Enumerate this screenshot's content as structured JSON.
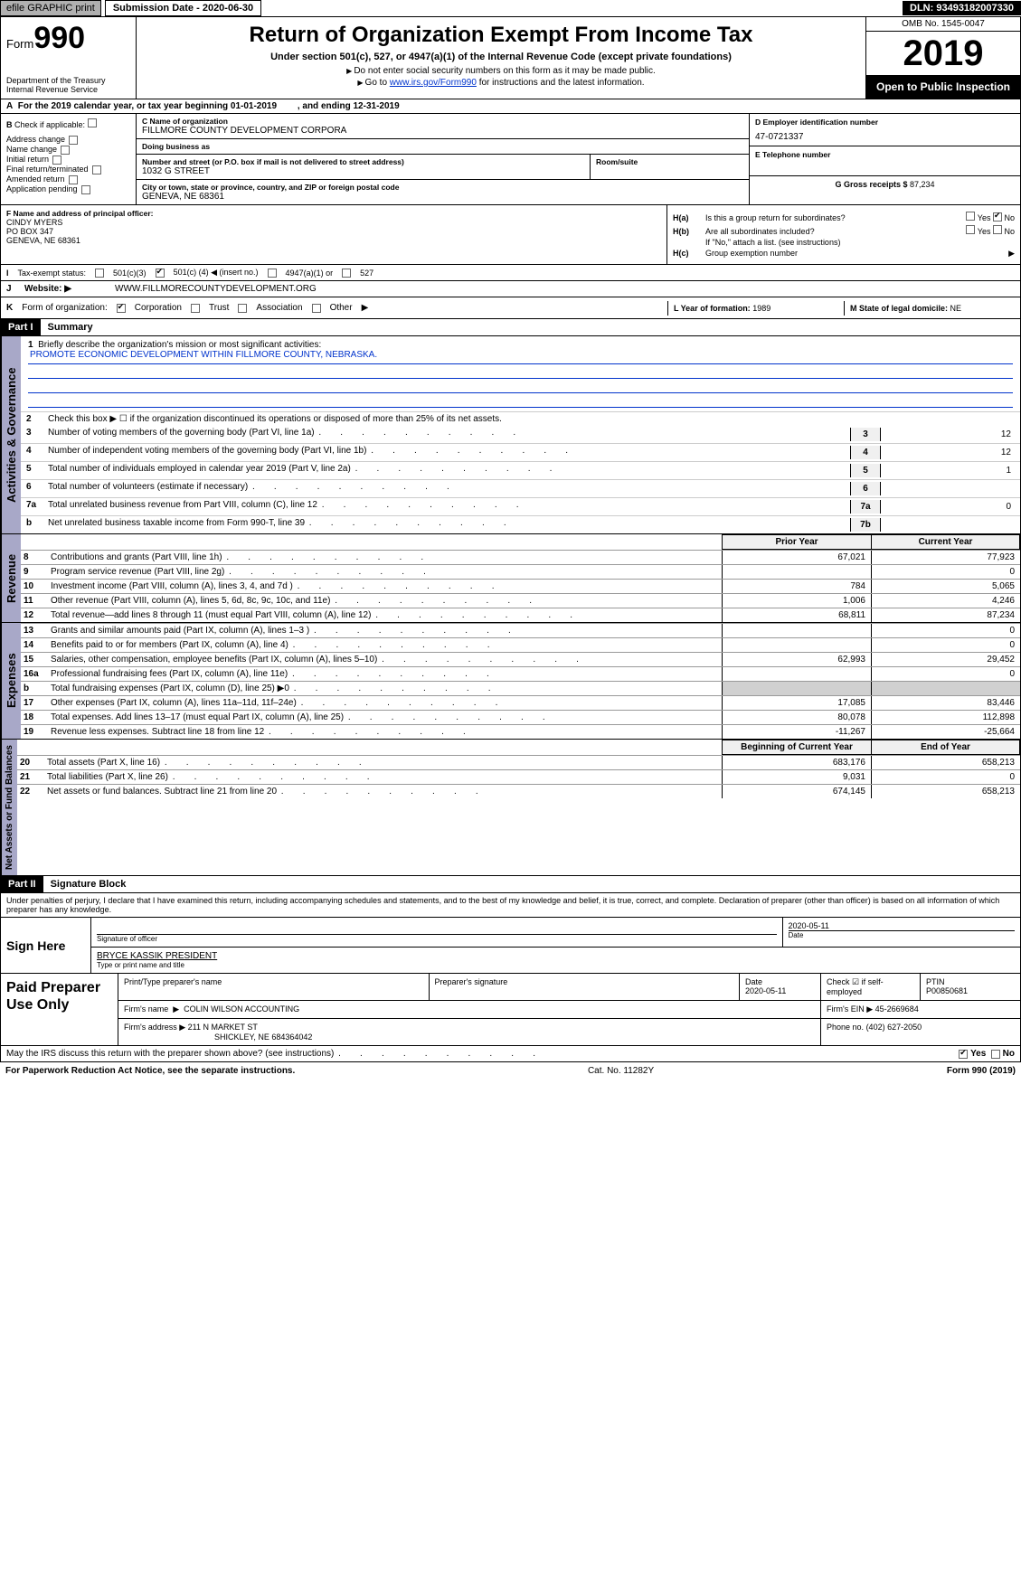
{
  "meta": {
    "efile_label": "efile GRAPHIC print",
    "submission_date_label": "Submission Date - 2020-06-30",
    "dln_label": "DLN: 93493182007330",
    "omb": "OMB No. 1545-0047",
    "form_prefix": "Form",
    "form_num": "990",
    "dept1": "Department of the Treasury",
    "dept2": "Internal Revenue Service",
    "title": "Return of Organization Exempt From Income Tax",
    "subtitle": "Under section 501(c), 527, or 4947(a)(1) of the Internal Revenue Code (except private foundations)",
    "note1": "Do not enter social security numbers on this form as it may be made public.",
    "note2_pre": "Go to ",
    "note2_link": "www.irs.gov/Form990",
    "note2_post": " for instructions and the latest information.",
    "year": "2019",
    "open_public": "Open to Public Inspection"
  },
  "rowA": {
    "lead": "A",
    "text": "For the 2019 calendar year, or tax year beginning 01-01-2019",
    "mid": ", and ending 12-31-2019"
  },
  "colB": {
    "lead": "B",
    "check_label": "Check if applicable:",
    "items": [
      "Address change",
      "Name change",
      "Initial return",
      "Final return/terminated",
      "Amended return",
      "Application pending"
    ]
  },
  "colC": {
    "name_label": "C Name of organization",
    "name": "FILLMORE COUNTY DEVELOPMENT CORPORA",
    "dba_label": "Doing business as",
    "dba": "",
    "street_label": "Number and street (or P.O. box if mail is not delivered to street address)",
    "street": "1032 G STREET",
    "room_label": "Room/suite",
    "room": "",
    "city_label": "City or town, state or province, country, and ZIP or foreign postal code",
    "city": "GENEVA, NE  68361"
  },
  "colDE": {
    "d_label": "D Employer identification number",
    "d_val": "47-0721337",
    "e_label": "E Telephone number",
    "e_val": "",
    "g_label": "G Gross receipts $",
    "g_val": "87,234"
  },
  "rowF": {
    "label": "F  Name and address of principal officer:",
    "name": "CINDY MYERS",
    "addr1": "PO BOX 347",
    "addr2": "GENEVA, NE   68361"
  },
  "rowH": {
    "ha_key": "H(a)",
    "ha_text": "Is this a group return for subordinates?",
    "ha_yes": "Yes",
    "ha_no": "No",
    "hb_key": "H(b)",
    "hb_text": "Are all subordinates included?",
    "hb_note": "If \"No,\" attach a list. (see instructions)",
    "hc_key": "H(c)",
    "hc_text": "Group exemption number"
  },
  "rowI": {
    "lead": "I",
    "label": "Tax-exempt status:",
    "opt1": "501(c)(3)",
    "opt2_pre": "501(c) (",
    "opt2_num": "4",
    "opt2_post": ")",
    "opt2_note": "(insert no.)",
    "opt3": "4947(a)(1) or",
    "opt4": "527"
  },
  "rowJ": {
    "lead": "J",
    "label": "Website:",
    "val": "WWW.FILLMORECOUNTYDEVELOPMENT.ORG"
  },
  "rowK": {
    "lead": "K",
    "label": "Form of organization:",
    "opts": [
      "Corporation",
      "Trust",
      "Association",
      "Other"
    ]
  },
  "rowLM": {
    "l_label": "L Year of formation:",
    "l_val": "1989",
    "m_label": "M State of legal domicile:",
    "m_val": "NE"
  },
  "part1": {
    "hdr": "Part I",
    "title": "Summary",
    "side1": "Activities & Governance",
    "side2": "Revenue",
    "side3": "Expenses",
    "side4": "Net Assets or Fund Balances",
    "line1_label": "Briefly describe the organization's mission or most significant activities:",
    "mission": "PROMOTE ECONOMIC DEVELOPMENT WITHIN FILLMORE COUNTY, NEBRASKA.",
    "line2_label": "Check this box ▶ ☐ if the organization discontinued its operations or disposed of more than 25% of its net assets.",
    "lines_gov": [
      {
        "n": "3",
        "t": "Number of voting members of the governing body (Part VI, line 1a)",
        "box": "3",
        "v": "12"
      },
      {
        "n": "4",
        "t": "Number of independent voting members of the governing body (Part VI, line 1b)",
        "box": "4",
        "v": "12"
      },
      {
        "n": "5",
        "t": "Total number of individuals employed in calendar year 2019 (Part V, line 2a)",
        "box": "5",
        "v": "1"
      },
      {
        "n": "6",
        "t": "Total number of volunteers (estimate if necessary)",
        "box": "6",
        "v": ""
      },
      {
        "n": "7a",
        "t": "Total unrelated business revenue from Part VIII, column (C), line 12",
        "box": "7a",
        "v": "0"
      },
      {
        "n": "b",
        "t": "Net unrelated business taxable income from Form 990-T, line 39",
        "box": "7b",
        "v": ""
      }
    ],
    "col_prior": "Prior Year",
    "col_current": "Current Year",
    "col_begin": "Beginning of Current Year",
    "col_end": "End of Year",
    "lines_rev": [
      {
        "n": "8",
        "t": "Contributions and grants (Part VIII, line 1h)",
        "py": "67,021",
        "cy": "77,923"
      },
      {
        "n": "9",
        "t": "Program service revenue (Part VIII, line 2g)",
        "py": "",
        "cy": "0"
      },
      {
        "n": "10",
        "t": "Investment income (Part VIII, column (A), lines 3, 4, and 7d )",
        "py": "784",
        "cy": "5,065"
      },
      {
        "n": "11",
        "t": "Other revenue (Part VIII, column (A), lines 5, 6d, 8c, 9c, 10c, and 11e)",
        "py": "1,006",
        "cy": "4,246"
      },
      {
        "n": "12",
        "t": "Total revenue—add lines 8 through 11 (must equal Part VIII, column (A), line 12)",
        "py": "68,811",
        "cy": "87,234"
      }
    ],
    "lines_exp": [
      {
        "n": "13",
        "t": "Grants and similar amounts paid (Part IX, column (A), lines 1–3 )",
        "py": "",
        "cy": "0"
      },
      {
        "n": "14",
        "t": "Benefits paid to or for members (Part IX, column (A), line 4)",
        "py": "",
        "cy": "0"
      },
      {
        "n": "15",
        "t": "Salaries, other compensation, employee benefits (Part IX, column (A), lines 5–10)",
        "py": "62,993",
        "cy": "29,452"
      },
      {
        "n": "16a",
        "t": "Professional fundraising fees (Part IX, column (A), line 11e)",
        "py": "",
        "cy": "0"
      },
      {
        "n": "b",
        "t": "Total fundraising expenses (Part IX, column (D), line 25) ▶0",
        "py": "SHADE",
        "cy": "SHADE"
      },
      {
        "n": "17",
        "t": "Other expenses (Part IX, column (A), lines 11a–11d, 11f–24e)",
        "py": "17,085",
        "cy": "83,446"
      },
      {
        "n": "18",
        "t": "Total expenses. Add lines 13–17 (must equal Part IX, column (A), line 25)",
        "py": "80,078",
        "cy": "112,898"
      },
      {
        "n": "19",
        "t": "Revenue less expenses. Subtract line 18 from line 12",
        "py": "-11,267",
        "cy": "-25,664"
      }
    ],
    "lines_net": [
      {
        "n": "20",
        "t": "Total assets (Part X, line 16)",
        "py": "683,176",
        "cy": "658,213"
      },
      {
        "n": "21",
        "t": "Total liabilities (Part X, line 26)",
        "py": "9,031",
        "cy": "0"
      },
      {
        "n": "22",
        "t": "Net assets or fund balances. Subtract line 21 from line 20",
        "py": "674,145",
        "cy": "658,213"
      }
    ]
  },
  "part2": {
    "hdr": "Part II",
    "title": "Signature Block",
    "decl": "Under penalties of perjury, I declare that I have examined this return, including accompanying schedules and statements, and to the best of my knowledge and belief, it is true, correct, and complete. Declaration of preparer (other than officer) is based on all information of which preparer has any knowledge.",
    "sign_here": "Sign Here",
    "sig_officer_label": "Signature of officer",
    "sig_date": "2020-05-11",
    "sig_date_label": "Date",
    "name_title": "BRYCE KASSIK  PRESIDENT",
    "name_title_label": "Type or print name and title",
    "paid_side": "Paid Preparer Use Only",
    "prep_name_label": "Print/Type preparer's name",
    "prep_name": "",
    "prep_sig_label": "Preparer's signature",
    "prep_date_label": "Date",
    "prep_date": "2020-05-11",
    "prep_check_label": "Check ☑ if self-employed",
    "ptin_label": "PTIN",
    "ptin": "P00850681",
    "firm_name_label": "Firm's name",
    "firm_name": "COLIN WILSON ACCOUNTING",
    "firm_ein_label": "Firm's EIN",
    "firm_ein": "45-2669684",
    "firm_addr_label": "Firm's address",
    "firm_addr1": "211 N MARKET ST",
    "firm_addr2": "SHICKLEY, NE  684364042",
    "phone_label": "Phone no.",
    "phone": "(402) 627-2050",
    "discuss": "May the IRS discuss this return with the preparer shown above? (see instructions)",
    "yes": "Yes",
    "no": "No"
  },
  "footer": {
    "left": "For Paperwork Reduction Act Notice, see the separate instructions.",
    "mid": "Cat. No. 11282Y",
    "right": "Form 990 (2019)"
  },
  "colors": {
    "black": "#000000",
    "grey_bg": "#b0b0b0",
    "side_tab": "#a8a8c8",
    "link": "#0033cc",
    "shade": "#d0d0d0"
  }
}
